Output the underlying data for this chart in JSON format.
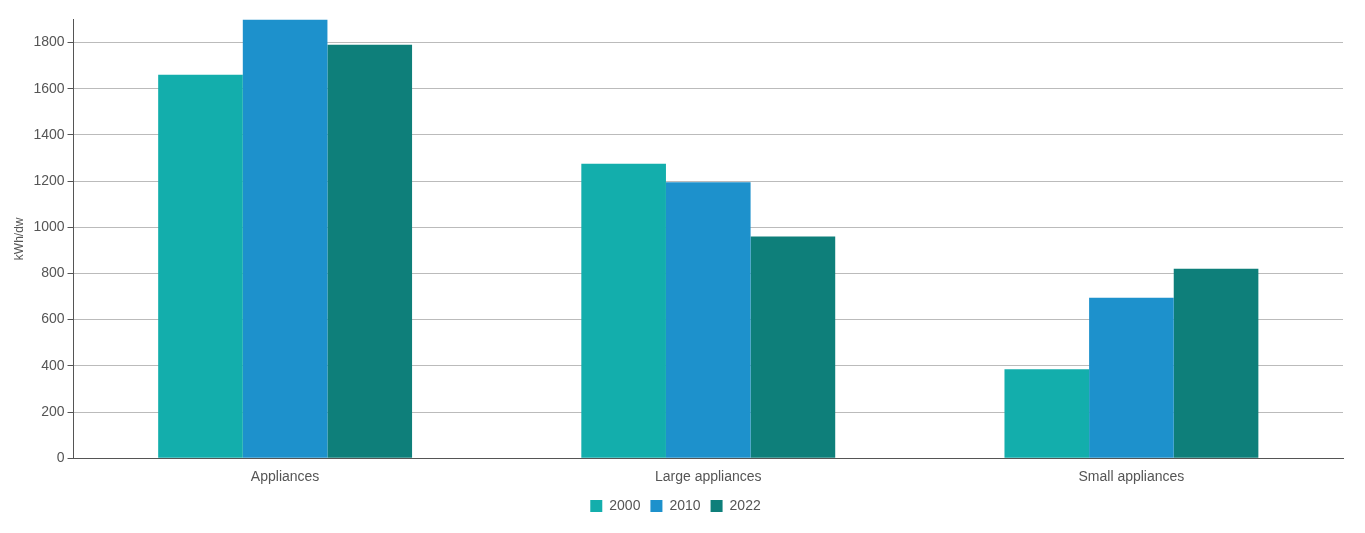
{
  "chart_data": {
    "type": "bar",
    "ylabel": "kWh/dw",
    "categories": [
      "Appliances",
      "Large appliances",
      "Small appliances"
    ],
    "series": [
      {
        "name": "2000",
        "color": "#13aeac",
        "values": [
          1660,
          1275,
          385
        ]
      },
      {
        "name": "2010",
        "color": "#1d91cc",
        "values": [
          1900,
          1195,
          695
        ]
      },
      {
        "name": "2022",
        "color": "#0e7f7a",
        "values": [
          1790,
          960,
          820
        ]
      }
    ],
    "ylim": [
      0,
      1900
    ],
    "yticks": [
      0,
      200,
      400,
      600,
      800,
      1000,
      1200,
      1400,
      1600,
      1800
    ],
    "grid": "y",
    "legend": "bottom"
  }
}
